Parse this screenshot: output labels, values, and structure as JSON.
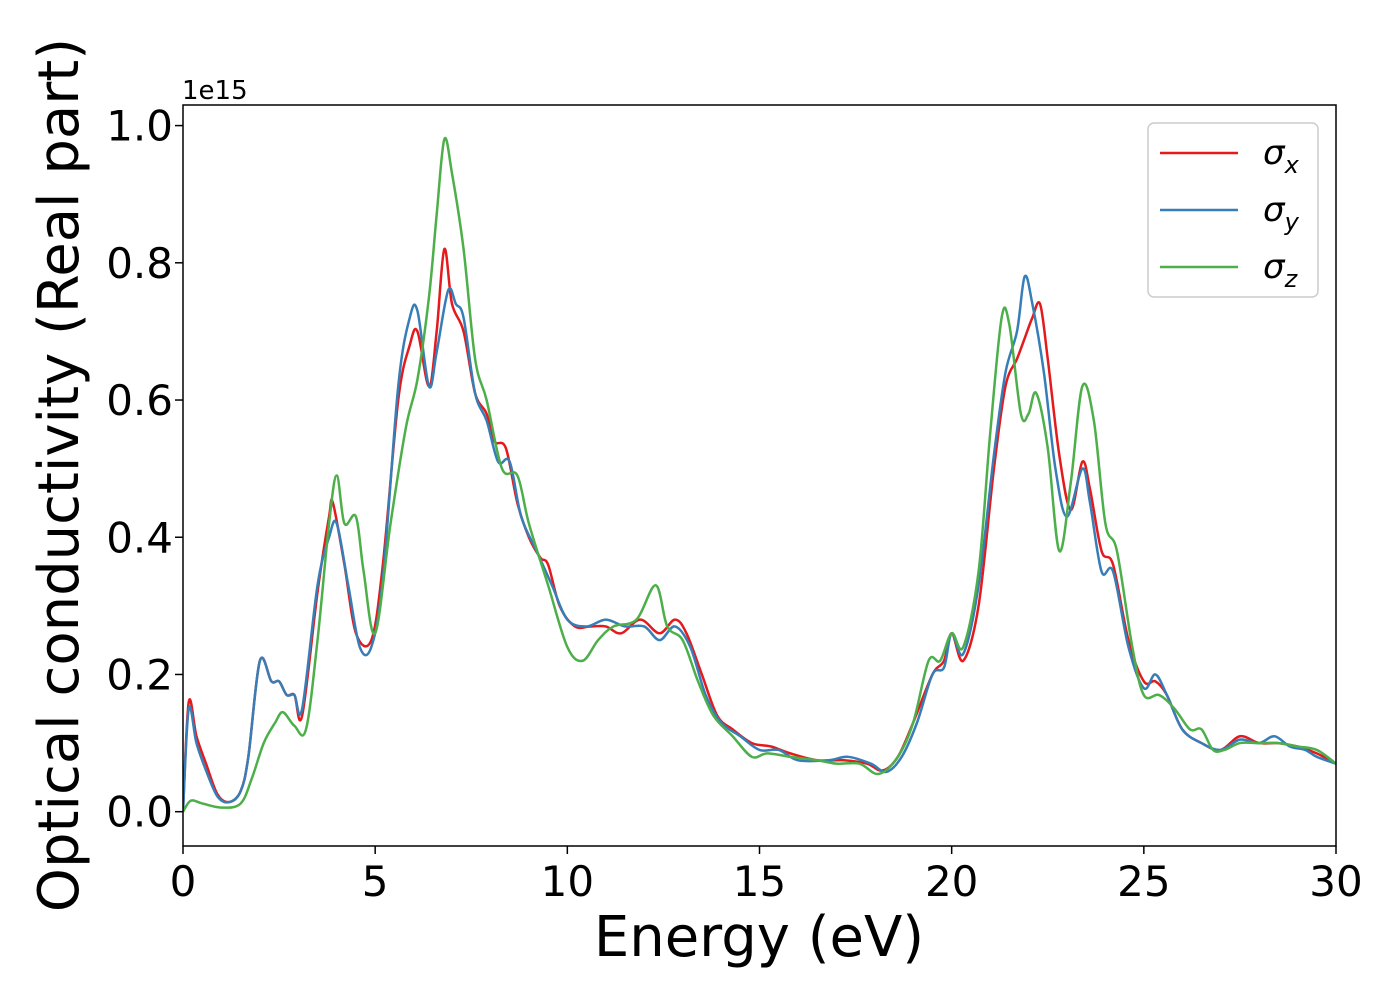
{
  "chart_data": {
    "type": "line",
    "xlabel": "Energy (eV)",
    "ylabel": "Optical conductivity (Real part)",
    "y_offset_label": "1e15",
    "xlim": [
      0,
      30
    ],
    "ylim": [
      -0.05,
      1.03
    ],
    "xticks": [
      0,
      5,
      10,
      15,
      20,
      25,
      30
    ],
    "xtick_labels": [
      "0",
      "5",
      "10",
      "15",
      "20",
      "25",
      "30"
    ],
    "yticks": [
      0.0,
      0.2,
      0.4,
      0.6,
      0.8,
      1.0
    ],
    "ytick_labels": [
      "0.0",
      "0.2",
      "0.4",
      "0.6",
      "0.8",
      "1.0"
    ],
    "grid": false,
    "legend_position": "top-right",
    "series": [
      {
        "name": "σx",
        "symbol": "σ",
        "subscript": "x",
        "color": "#e41a1c",
        "points": [
          [
            0,
            0.0
          ],
          [
            0.15,
            0.16
          ],
          [
            0.35,
            0.11
          ],
          [
            0.6,
            0.07
          ],
          [
            0.9,
            0.025
          ],
          [
            1.2,
            0.014
          ],
          [
            1.5,
            0.03
          ],
          [
            1.7,
            0.08
          ],
          [
            2.0,
            0.22
          ],
          [
            2.3,
            0.19
          ],
          [
            2.5,
            0.19
          ],
          [
            2.7,
            0.17
          ],
          [
            2.9,
            0.17
          ],
          [
            3.1,
            0.14
          ],
          [
            3.5,
            0.32
          ],
          [
            3.8,
            0.43
          ],
          [
            3.9,
            0.45
          ],
          [
            4.2,
            0.36
          ],
          [
            4.5,
            0.26
          ],
          [
            4.9,
            0.25
          ],
          [
            5.2,
            0.36
          ],
          [
            5.6,
            0.6
          ],
          [
            5.9,
            0.68
          ],
          [
            6.1,
            0.7
          ],
          [
            6.4,
            0.62
          ],
          [
            6.6,
            0.7
          ],
          [
            6.8,
            0.82
          ],
          [
            7.0,
            0.74
          ],
          [
            7.3,
            0.7
          ],
          [
            7.6,
            0.61
          ],
          [
            7.9,
            0.58
          ],
          [
            8.1,
            0.54
          ],
          [
            8.4,
            0.53
          ],
          [
            8.7,
            0.45
          ],
          [
            9.0,
            0.4
          ],
          [
            9.3,
            0.37
          ],
          [
            9.5,
            0.36
          ],
          [
            9.8,
            0.3
          ],
          [
            10.2,
            0.27
          ],
          [
            10.6,
            0.27
          ],
          [
            11.0,
            0.27
          ],
          [
            11.4,
            0.26
          ],
          [
            11.9,
            0.28
          ],
          [
            12.4,
            0.26
          ],
          [
            12.8,
            0.28
          ],
          [
            13.1,
            0.26
          ],
          [
            13.5,
            0.2
          ],
          [
            13.9,
            0.14
          ],
          [
            14.3,
            0.12
          ],
          [
            14.8,
            0.1
          ],
          [
            15.3,
            0.095
          ],
          [
            15.8,
            0.085
          ],
          [
            16.5,
            0.075
          ],
          [
            17.2,
            0.075
          ],
          [
            17.8,
            0.07
          ],
          [
            18.2,
            0.06
          ],
          [
            18.6,
            0.08
          ],
          [
            19.0,
            0.13
          ],
          [
            19.5,
            0.2
          ],
          [
            19.8,
            0.22
          ],
          [
            20.0,
            0.26
          ],
          [
            20.3,
            0.22
          ],
          [
            20.7,
            0.3
          ],
          [
            21.1,
            0.5
          ],
          [
            21.4,
            0.62
          ],
          [
            21.7,
            0.66
          ],
          [
            21.9,
            0.69
          ],
          [
            22.1,
            0.72
          ],
          [
            22.3,
            0.74
          ],
          [
            22.5,
            0.66
          ],
          [
            22.8,
            0.52
          ],
          [
            23.1,
            0.44
          ],
          [
            23.4,
            0.51
          ],
          [
            23.6,
            0.47
          ],
          [
            23.9,
            0.38
          ],
          [
            24.2,
            0.36
          ],
          [
            24.6,
            0.25
          ],
          [
            25.0,
            0.19
          ],
          [
            25.3,
            0.19
          ],
          [
            25.6,
            0.17
          ],
          [
            26.0,
            0.12
          ],
          [
            26.5,
            0.1
          ],
          [
            27.0,
            0.09
          ],
          [
            27.5,
            0.11
          ],
          [
            28.0,
            0.1
          ],
          [
            28.5,
            0.1
          ],
          [
            29.0,
            0.095
          ],
          [
            29.5,
            0.085
          ],
          [
            30.0,
            0.07
          ]
        ]
      },
      {
        "name": "σy",
        "symbol": "σ",
        "subscript": "y",
        "color": "#377eb8",
        "points": [
          [
            0,
            0.0
          ],
          [
            0.15,
            0.15
          ],
          [
            0.35,
            0.1
          ],
          [
            0.6,
            0.06
          ],
          [
            0.9,
            0.022
          ],
          [
            1.2,
            0.014
          ],
          [
            1.5,
            0.03
          ],
          [
            1.7,
            0.08
          ],
          [
            2.0,
            0.22
          ],
          [
            2.3,
            0.19
          ],
          [
            2.5,
            0.19
          ],
          [
            2.7,
            0.17
          ],
          [
            2.9,
            0.17
          ],
          [
            3.1,
            0.15
          ],
          [
            3.5,
            0.33
          ],
          [
            3.8,
            0.4
          ],
          [
            4.0,
            0.42
          ],
          [
            4.3,
            0.33
          ],
          [
            4.6,
            0.24
          ],
          [
            4.9,
            0.24
          ],
          [
            5.2,
            0.34
          ],
          [
            5.6,
            0.62
          ],
          [
            5.9,
            0.72
          ],
          [
            6.1,
            0.73
          ],
          [
            6.4,
            0.62
          ],
          [
            6.6,
            0.67
          ],
          [
            6.9,
            0.76
          ],
          [
            7.1,
            0.74
          ],
          [
            7.3,
            0.72
          ],
          [
            7.6,
            0.61
          ],
          [
            7.9,
            0.57
          ],
          [
            8.2,
            0.51
          ],
          [
            8.5,
            0.51
          ],
          [
            8.8,
            0.43
          ],
          [
            9.2,
            0.38
          ],
          [
            9.6,
            0.33
          ],
          [
            10.0,
            0.28
          ],
          [
            10.5,
            0.27
          ],
          [
            11.0,
            0.28
          ],
          [
            11.5,
            0.27
          ],
          [
            12.0,
            0.27
          ],
          [
            12.4,
            0.25
          ],
          [
            12.8,
            0.27
          ],
          [
            13.2,
            0.24
          ],
          [
            13.6,
            0.17
          ],
          [
            14.0,
            0.13
          ],
          [
            14.5,
            0.11
          ],
          [
            15.0,
            0.09
          ],
          [
            15.5,
            0.09
          ],
          [
            16.0,
            0.075
          ],
          [
            16.8,
            0.075
          ],
          [
            17.3,
            0.08
          ],
          [
            17.9,
            0.07
          ],
          [
            18.3,
            0.058
          ],
          [
            18.7,
            0.08
          ],
          [
            19.1,
            0.13
          ],
          [
            19.5,
            0.2
          ],
          [
            19.8,
            0.21
          ],
          [
            20.0,
            0.26
          ],
          [
            20.3,
            0.23
          ],
          [
            20.7,
            0.33
          ],
          [
            21.1,
            0.52
          ],
          [
            21.4,
            0.64
          ],
          [
            21.7,
            0.7
          ],
          [
            21.9,
            0.78
          ],
          [
            22.1,
            0.74
          ],
          [
            22.4,
            0.64
          ],
          [
            22.7,
            0.5
          ],
          [
            23.0,
            0.43
          ],
          [
            23.4,
            0.5
          ],
          [
            23.6,
            0.45
          ],
          [
            23.9,
            0.35
          ],
          [
            24.2,
            0.35
          ],
          [
            24.6,
            0.24
          ],
          [
            25.0,
            0.18
          ],
          [
            25.3,
            0.2
          ],
          [
            25.6,
            0.17
          ],
          [
            26.0,
            0.12
          ],
          [
            26.5,
            0.1
          ],
          [
            27.0,
            0.09
          ],
          [
            27.5,
            0.105
          ],
          [
            28.0,
            0.1
          ],
          [
            28.4,
            0.11
          ],
          [
            28.8,
            0.095
          ],
          [
            29.2,
            0.09
          ],
          [
            29.5,
            0.08
          ],
          [
            30.0,
            0.07
          ]
        ]
      },
      {
        "name": "σz",
        "symbol": "σ",
        "subscript": "z",
        "color": "#4daf4a",
        "points": [
          [
            0,
            0.0
          ],
          [
            0.2,
            0.016
          ],
          [
            0.5,
            0.012
          ],
          [
            1.0,
            0.006
          ],
          [
            1.5,
            0.012
          ],
          [
            1.8,
            0.05
          ],
          [
            2.1,
            0.1
          ],
          [
            2.4,
            0.13
          ],
          [
            2.6,
            0.145
          ],
          [
            2.9,
            0.125
          ],
          [
            3.2,
            0.12
          ],
          [
            3.5,
            0.25
          ],
          [
            3.8,
            0.42
          ],
          [
            4.0,
            0.49
          ],
          [
            4.2,
            0.42
          ],
          [
            4.5,
            0.43
          ],
          [
            4.7,
            0.35
          ],
          [
            5.0,
            0.26
          ],
          [
            5.4,
            0.42
          ],
          [
            5.8,
            0.56
          ],
          [
            6.1,
            0.63
          ],
          [
            6.4,
            0.75
          ],
          [
            6.6,
            0.87
          ],
          [
            6.8,
            0.98
          ],
          [
            7.0,
            0.93
          ],
          [
            7.3,
            0.82
          ],
          [
            7.6,
            0.66
          ],
          [
            7.9,
            0.6
          ],
          [
            8.3,
            0.5
          ],
          [
            8.7,
            0.49
          ],
          [
            9.0,
            0.42
          ],
          [
            9.5,
            0.33
          ],
          [
            10.0,
            0.24
          ],
          [
            10.4,
            0.22
          ],
          [
            10.8,
            0.25
          ],
          [
            11.2,
            0.27
          ],
          [
            11.8,
            0.28
          ],
          [
            12.3,
            0.33
          ],
          [
            12.6,
            0.27
          ],
          [
            13.0,
            0.25
          ],
          [
            13.4,
            0.19
          ],
          [
            13.8,
            0.14
          ],
          [
            14.3,
            0.11
          ],
          [
            14.8,
            0.08
          ],
          [
            15.2,
            0.085
          ],
          [
            15.8,
            0.08
          ],
          [
            16.5,
            0.075
          ],
          [
            17.0,
            0.07
          ],
          [
            17.6,
            0.07
          ],
          [
            18.1,
            0.055
          ],
          [
            18.6,
            0.08
          ],
          [
            19.0,
            0.13
          ],
          [
            19.4,
            0.22
          ],
          [
            19.7,
            0.22
          ],
          [
            20.0,
            0.26
          ],
          [
            20.3,
            0.24
          ],
          [
            20.7,
            0.35
          ],
          [
            21.0,
            0.55
          ],
          [
            21.3,
            0.72
          ],
          [
            21.5,
            0.71
          ],
          [
            21.8,
            0.58
          ],
          [
            22.0,
            0.58
          ],
          [
            22.2,
            0.61
          ],
          [
            22.5,
            0.53
          ],
          [
            22.8,
            0.38
          ],
          [
            23.1,
            0.48
          ],
          [
            23.4,
            0.62
          ],
          [
            23.7,
            0.57
          ],
          [
            24.0,
            0.42
          ],
          [
            24.3,
            0.38
          ],
          [
            24.7,
            0.24
          ],
          [
            25.0,
            0.17
          ],
          [
            25.4,
            0.17
          ],
          [
            25.8,
            0.15
          ],
          [
            26.2,
            0.12
          ],
          [
            26.5,
            0.12
          ],
          [
            26.8,
            0.09
          ],
          [
            27.1,
            0.09
          ],
          [
            27.5,
            0.1
          ],
          [
            28.0,
            0.1
          ],
          [
            28.5,
            0.1
          ],
          [
            29.0,
            0.095
          ],
          [
            29.5,
            0.09
          ],
          [
            30.0,
            0.07
          ]
        ]
      }
    ]
  }
}
